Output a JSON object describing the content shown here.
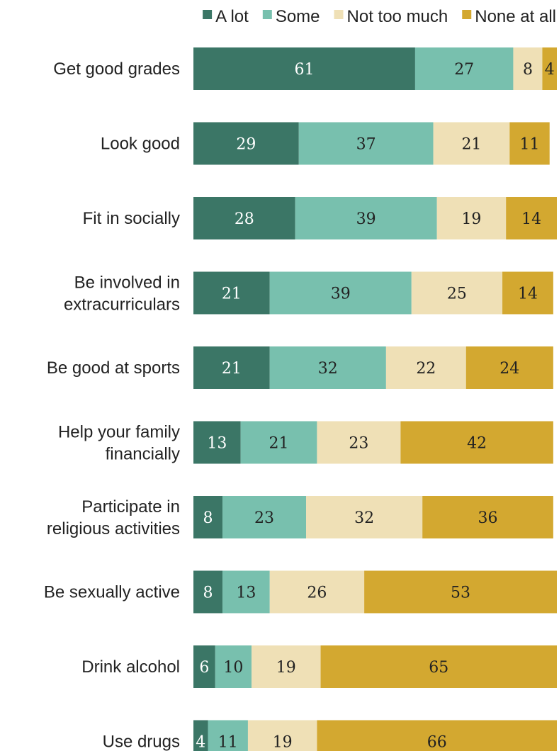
{
  "chart_data": {
    "type": "bar",
    "orientation": "horizontal",
    "stacked": true,
    "legend_position": "top-right",
    "grid": false,
    "xlim": [
      0,
      100
    ],
    "categories": [
      "Get good grades",
      "Look good",
      "Fit in socially",
      "Be involved in extracurriculars",
      "Be good at sports",
      "Help your family financially",
      "Participate in religious activities",
      "Be sexually active",
      "Drink alcohol",
      "Use drugs"
    ],
    "category_lines": [
      [
        "Get good grades"
      ],
      [
        "Look good"
      ],
      [
        "Fit in socially"
      ],
      [
        "Be involved in",
        "extracurriculars"
      ],
      [
        "Be good at sports"
      ],
      [
        "Help your family",
        "financially"
      ],
      [
        "Participate in",
        "religious activities"
      ],
      [
        "Be sexually active"
      ],
      [
        "Drink alcohol"
      ],
      [
        "Use drugs"
      ]
    ],
    "series": [
      {
        "name": "A lot",
        "color": "#3b7666",
        "label_color": "#ffffff",
        "values": [
          61,
          29,
          28,
          21,
          21,
          13,
          8,
          8,
          6,
          4
        ]
      },
      {
        "name": "Some",
        "color": "#78c0ae",
        "label_color": "#222222",
        "values": [
          27,
          37,
          39,
          39,
          32,
          21,
          23,
          13,
          10,
          11
        ]
      },
      {
        "name": "Not too much",
        "color": "#efe0b6",
        "label_color": "#222222",
        "values": [
          8,
          21,
          19,
          25,
          22,
          23,
          32,
          26,
          19,
          19
        ]
      },
      {
        "name": "None at all",
        "color": "#d3a830",
        "label_color": "#222222",
        "values": [
          4,
          11,
          14,
          14,
          24,
          42,
          36,
          53,
          65,
          66
        ]
      }
    ]
  }
}
